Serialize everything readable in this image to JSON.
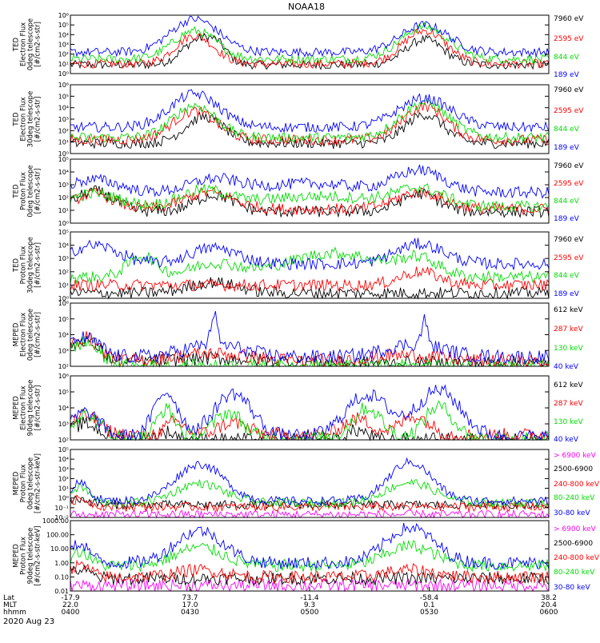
{
  "title": "NOAA18",
  "date": "2020 Aug 23",
  "colors": {
    "black": "#000000",
    "red": "#ff0000",
    "green": "#00dd00",
    "blue": "#0000ff",
    "magenta": "#ff00ff",
    "white": "#ffffff"
  },
  "chart_data": [
    {
      "type": "line",
      "ylabel": [
        "TED",
        "Electron Flux",
        "0deg telescope",
        "[#/cm2-s-str]"
      ],
      "ylim": [
        1,
        1000000
      ],
      "yticks": [
        "10⁰",
        "10¹",
        "10²",
        "10³",
        "10⁴",
        "10⁵",
        "10⁶"
      ],
      "series": [
        {
          "name": "7960 eV",
          "color": "#000000"
        },
        {
          "name": "2595 eV",
          "color": "#ff0000"
        },
        {
          "name": "844 eV",
          "color": "#00dd00"
        },
        {
          "name": "189 eV",
          "color": "#0000ff"
        }
      ]
    },
    {
      "type": "line",
      "ylabel": [
        "TED",
        "Electron Flux",
        "30deg telescope",
        "[#/cm2-s-str]"
      ],
      "ylim": [
        1,
        1000000
      ],
      "yticks": [
        "10⁰",
        "10¹",
        "10²",
        "10³",
        "10⁴",
        "10⁵",
        "10⁶"
      ],
      "series": [
        {
          "name": "7960 eV",
          "color": "#000000"
        },
        {
          "name": "2595 eV",
          "color": "#ff0000"
        },
        {
          "name": "844 eV",
          "color": "#00dd00"
        },
        {
          "name": "189 eV",
          "color": "#0000ff"
        }
      ]
    },
    {
      "type": "line",
      "ylabel": [
        "TED",
        "Proton Flux",
        "0deg telescope",
        "[#/cm2-s-str]"
      ],
      "ylim": [
        1,
        100000
      ],
      "yticks": [
        "10⁰",
        "10¹",
        "10²",
        "10³",
        "10⁴",
        "10⁵"
      ],
      "series": [
        {
          "name": "7960 eV",
          "color": "#000000"
        },
        {
          "name": "2595 eV",
          "color": "#ff0000"
        },
        {
          "name": "844 eV",
          "color": "#00dd00"
        },
        {
          "name": "189 eV",
          "color": "#0000ff"
        }
      ]
    },
    {
      "type": "line",
      "ylabel": [
        "TED",
        "Proton Flux",
        "30deg telescope",
        "[#/cm2-s-str]"
      ],
      "ylim": [
        1,
        100000
      ],
      "yticks": [
        "10⁰",
        "10¹",
        "10²",
        "10³",
        "10⁴",
        "10⁵"
      ],
      "series": [
        {
          "name": "7960 eV",
          "color": "#000000"
        },
        {
          "name": "2595 eV",
          "color": "#ff0000"
        },
        {
          "name": "844 eV",
          "color": "#00dd00"
        },
        {
          "name": "189 eV",
          "color": "#0000ff"
        }
      ]
    },
    {
      "type": "line",
      "ylabel": [
        "MEPED",
        "Electron Flux",
        "0deg telescope",
        "[#/cm2-s-str]"
      ],
      "ylim": [
        100,
        1000000
      ],
      "yticks": [
        "10²",
        "10³",
        "10⁴",
        "10⁵",
        "10⁶"
      ],
      "series": [
        {
          "name": "612 keV",
          "color": "#000000"
        },
        {
          "name": "287 keV",
          "color": "#ff0000"
        },
        {
          "name": "130 keV",
          "color": "#00dd00"
        },
        {
          "name": "40 keV",
          "color": "#0000ff"
        }
      ]
    },
    {
      "type": "line",
      "ylabel": [
        "MEPED",
        "Electron Flux",
        "90deg telescope",
        "[#/cm2-s-str]"
      ],
      "ylim": [
        100,
        1000000
      ],
      "yticks": [
        "10²",
        "10³",
        "10⁴",
        "10⁵",
        "10⁶"
      ],
      "series": [
        {
          "name": "612 keV",
          "color": "#000000"
        },
        {
          "name": "287 keV",
          "color": "#ff0000"
        },
        {
          "name": "130 keV",
          "color": "#00dd00"
        },
        {
          "name": "40 keV",
          "color": "#0000ff"
        }
      ]
    },
    {
      "type": "line",
      "ylabel": [
        "MEPED",
        "Proton Flux",
        "0deg telescope",
        "[#/cm2-s-str-keV]"
      ],
      "ylim": [
        0.01,
        100000
      ],
      "yticks": [
        "10⁻²",
        "10⁻¹",
        "10⁰",
        "10¹",
        "10²",
        "10³",
        "10⁴",
        "10⁵"
      ],
      "series": [
        {
          "name": "> 6900 keV",
          "color": "#ff00ff"
        },
        {
          "name": "2500-6900",
          "color": "#000000"
        },
        {
          "name": "240-800 keV",
          "color": "#ff0000"
        },
        {
          "name": "80-240 keV",
          "color": "#00dd00"
        },
        {
          "name": "30-80 keV",
          "color": "#0000ff"
        }
      ]
    },
    {
      "type": "line",
      "ylabel": [
        "MEPED",
        "Proton Flux",
        "90deg telescope",
        "[#/cm2-s-str-keV]"
      ],
      "ylim": [
        0.01,
        1000
      ],
      "yticks": [
        "0.01",
        "0.10",
        "1.00",
        "10.00",
        "100.00",
        "1000.00"
      ],
      "series": [
        {
          "name": "> 6900 keV",
          "color": "#ff00ff"
        },
        {
          "name": "2500-6900",
          "color": "#000000"
        },
        {
          "name": "240-800 keV",
          "color": "#ff0000"
        },
        {
          "name": "80-240 keV",
          "color": "#00dd00"
        },
        {
          "name": "30-80 keV",
          "color": "#0000ff"
        }
      ]
    }
  ],
  "x_axis": {
    "row_labels": [
      "Lat",
      "MLT",
      "hhmm"
    ],
    "columns": [
      {
        "lat": "-17.9",
        "mlt": "22.0",
        "hhmm": "0400"
      },
      {
        "lat": "73.7",
        "mlt": "17.0",
        "hhmm": "0430"
      },
      {
        "lat": "-11.4",
        "mlt": "9.3",
        "hhmm": "0500"
      },
      {
        "lat": "-58.4",
        "mlt": "0.1",
        "hhmm": "0530"
      },
      {
        "lat": "38.2",
        "mlt": "20.4",
        "hhmm": "0600"
      }
    ]
  }
}
